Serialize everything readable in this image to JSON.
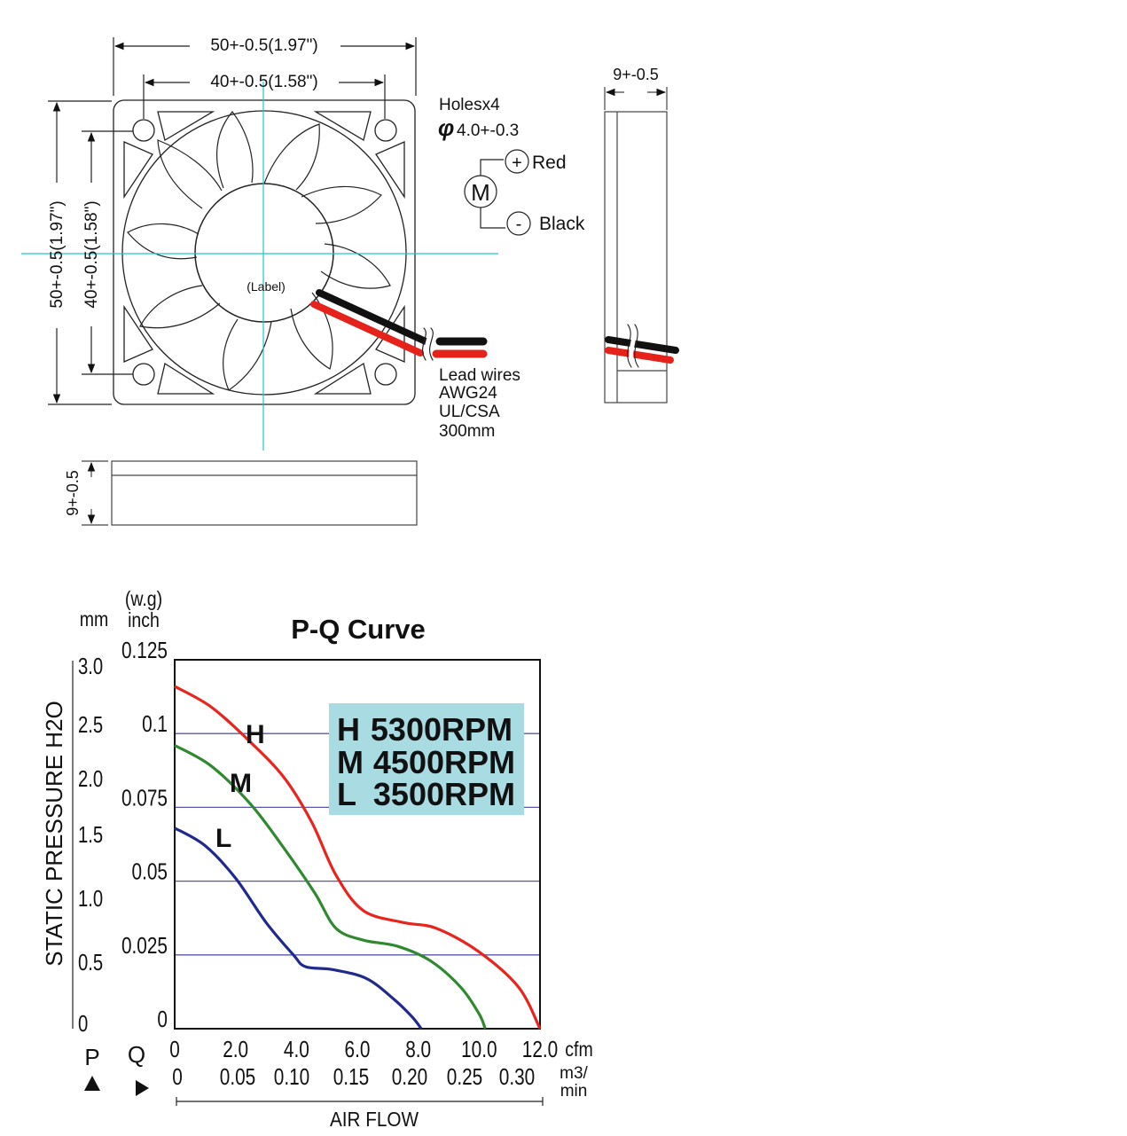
{
  "drawing": {
    "dim_width_outer": "50+-0.5(1.97\")",
    "dim_width_inner": "40+-0.5(1.58\")",
    "dim_height_outer": "50+-0.5(1.97\")",
    "dim_height_inner": "40+-0.5(1.58\")",
    "dim_side_thickness": "9+-0.5",
    "dim_bottom_thickness": "9+-0.5",
    "holes_title": "Holesx4",
    "holes_diameter": "4.0+-0.3",
    "diameter_symbol": "φ",
    "label_text": "(Label)",
    "motor_symbol": "M",
    "plus_symbol": "+",
    "minus_symbol": "-",
    "wire_red": "Red",
    "wire_black": "Black",
    "lead_wires": [
      "Lead wires",
      "AWG24",
      "UL/CSA",
      "300mm"
    ]
  },
  "colors": {
    "wire_red": "#e5231b",
    "wire_black": "#111111",
    "center_line": "#22c4d6",
    "curve_H": "#e8241c",
    "curve_M": "#2f8a2f",
    "curve_L": "#1f2a8c",
    "grid": "#5a57a8",
    "legend_bg": "#a9dbe3"
  },
  "chart_data": {
    "type": "line",
    "title": "P-Q Curve",
    "ylabel": "STATIC PRESSURE H2O",
    "xlabel": "AIR FLOW",
    "y_units_mm": "mm",
    "y_units_inch_top": "(w.g)",
    "y_units_inch": "inch",
    "x_units_cfm": "cfm",
    "x_units_m3": "m3/",
    "x_units_min": "min",
    "p_label": "P",
    "q_label": "Q",
    "ylim_inch": [
      0,
      0.125
    ],
    "xlim_cfm": [
      0,
      12.0
    ],
    "y_ticks_mm": [
      "3.0",
      "2.5",
      "2.0",
      "1.5",
      "1.0",
      "0.5",
      "0"
    ],
    "y_ticks_inch": [
      "0.125",
      "0.1",
      "0.075",
      "0.05",
      "0.025",
      "0"
    ],
    "x_ticks_cfm": [
      "0",
      "2.0",
      "4.0",
      "6.0",
      "8.0",
      "10.0",
      "12.0"
    ],
    "x_ticks_m3": [
      "0",
      "0.05",
      "0.10",
      "0.15",
      "0.20",
      "0.25",
      "0.30"
    ],
    "gridlines_inch": [
      0.1,
      0.075,
      0.05,
      0.025
    ],
    "legend": [
      {
        "key": "H",
        "label": "5300RPM"
      },
      {
        "key": "M",
        "label": "4500RPM"
      },
      {
        "key": "L",
        "label": "3500RPM"
      }
    ],
    "series": [
      {
        "name": "H",
        "x": [
          0,
          1.2,
          2.5,
          3.6,
          4.5,
          5.3,
          6.2,
          7.5,
          8.6,
          10.0,
          11.3,
          12.0
        ],
        "y": [
          0.116,
          0.109,
          0.097,
          0.085,
          0.07,
          0.052,
          0.04,
          0.036,
          0.034,
          0.026,
          0.014,
          0.0
        ]
      },
      {
        "name": "M",
        "x": [
          0,
          1.2,
          2.5,
          3.6,
          4.6,
          5.3,
          6.2,
          7.3,
          8.4,
          9.4,
          10.0,
          10.2
        ],
        "y": [
          0.096,
          0.089,
          0.076,
          0.061,
          0.046,
          0.034,
          0.03,
          0.028,
          0.023,
          0.014,
          0.005,
          0.0
        ]
      },
      {
        "name": "L",
        "x": [
          0,
          1.0,
          2.0,
          3.0,
          3.9,
          4.3,
          5.2,
          6.3,
          7.2,
          7.8,
          8.1
        ],
        "y": [
          0.068,
          0.062,
          0.051,
          0.036,
          0.025,
          0.021,
          0.02,
          0.017,
          0.01,
          0.004,
          0.0
        ]
      }
    ],
    "curve_labels": [
      "H",
      "M",
      "L"
    ]
  }
}
